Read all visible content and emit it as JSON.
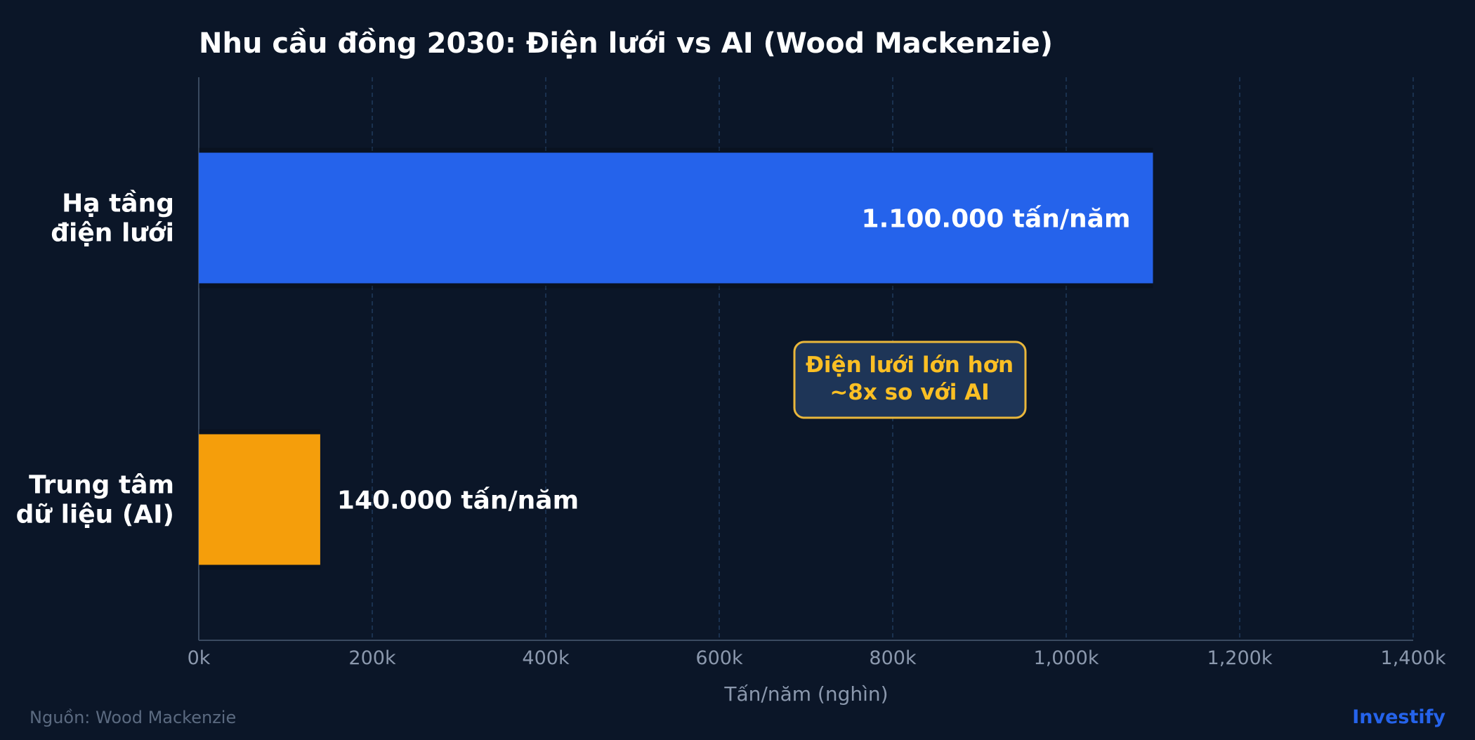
{
  "chart_data": {
    "type": "bar",
    "orientation": "horizontal",
    "title": "Nhu cầu đồng 2030: Điện lưới vs AI (Wood Mackenzie)",
    "xlabel": "Tấn/năm (nghìn)",
    "ylabel": "",
    "xlim": [
      0,
      1400
    ],
    "xticks": [
      0,
      200,
      400,
      600,
      800,
      1000,
      1200,
      1400
    ],
    "xtick_labels": [
      "0k",
      "200k",
      "400k",
      "600k",
      "800k",
      "1,000k",
      "1,200k",
      "1,400k"
    ],
    "grid": true,
    "categories": [
      [
        "Hạ tầng",
        "điện lưới"
      ],
      [
        "Trung tâm",
        "dữ liệu (AI)"
      ]
    ],
    "values": [
      1100,
      140
    ],
    "data_labels": [
      "1.100.000 tấn/năm",
      "140.000 tấn/năm"
    ],
    "colors": [
      "#2563eb",
      "#f59e0b"
    ],
    "annotation": {
      "lines": [
        "Điện lưới lớn hơn",
        "~8x so với AI"
      ],
      "color": "#fbbf24"
    }
  },
  "footer": {
    "source": "Nguồn: Wood Mackenzie",
    "brand": "Investify"
  },
  "colors": {
    "background": "#0b1628",
    "text": "#ffffff",
    "tick_text": "#8b98ad",
    "grid": "#1f3a5c",
    "axis": "#3a4a60",
    "annotation_bg": "#1e3557",
    "annotation_border": "#eab73b",
    "brand": "#2563eb"
  }
}
